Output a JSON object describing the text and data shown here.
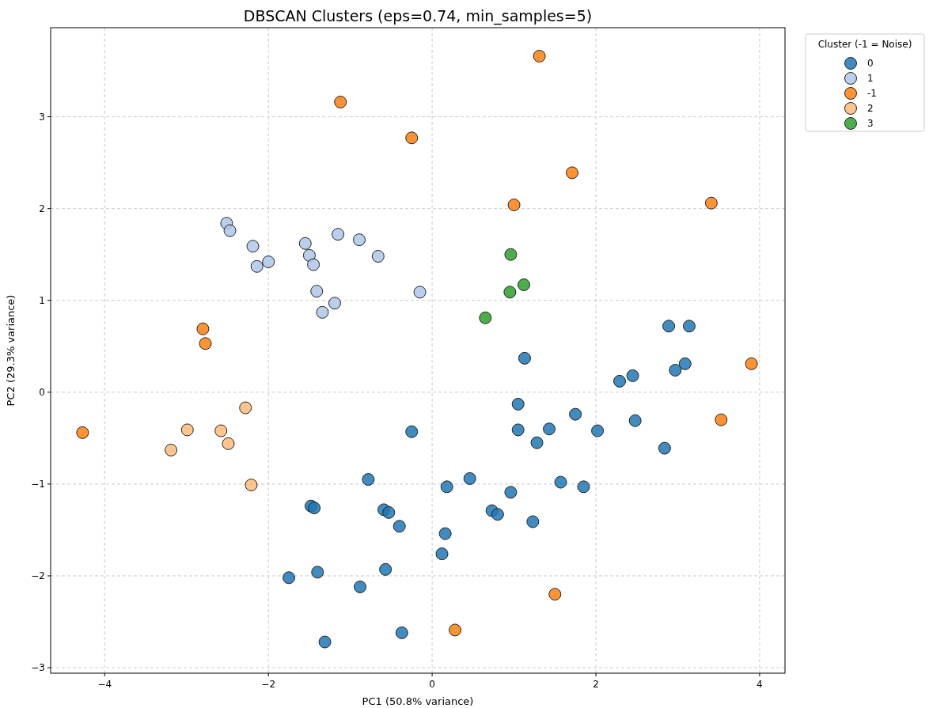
{
  "chart_data": {
    "type": "scatter",
    "title": "DBSCAN Clusters (eps=0.74, min_samples=5)",
    "xlabel": "PC1 (50.8% variance)",
    "ylabel": "PC2 (29.3% variance)",
    "legend_title": "Cluster (-1 = Noise)",
    "legend": "top right",
    "grid": true,
    "marker": "circle",
    "xlim": [
      -4.66,
      4.31
    ],
    "ylim": [
      -3.06,
      3.97
    ],
    "xticks": [
      {
        "value": -4,
        "label": "−4"
      },
      {
        "value": -2,
        "label": "−2"
      },
      0,
      2,
      4
    ],
    "yticks": [
      {
        "value": -3,
        "label": "−3"
      },
      {
        "value": -2,
        "label": "−2"
      },
      {
        "value": -1,
        "label": "−1"
      },
      0,
      1,
      2,
      3
    ],
    "series": [
      {
        "name": "0",
        "color": "#1f77b4",
        "x": [
          1.13,
          2.89,
          3.14,
          3.09,
          2.97,
          2.45,
          2.29,
          1.05,
          1.75,
          2.48,
          2.02,
          1.43,
          1.05,
          1.28,
          2.84,
          -0.25,
          0.18,
          0.46,
          -0.78,
          0.96,
          1.57,
          1.85,
          0.73,
          0.8,
          1.23,
          -1.48,
          -1.44,
          -0.59,
          -0.53,
          -0.4,
          0.16,
          0.12,
          -0.57,
          -1.4,
          -1.75,
          -0.88,
          -0.37,
          -1.31
        ],
        "values": [
          0.37,
          0.72,
          0.72,
          0.31,
          0.24,
          0.18,
          0.12,
          -0.13,
          -0.24,
          -0.31,
          -0.42,
          -0.4,
          -0.41,
          -0.55,
          -0.61,
          -0.43,
          -1.03,
          -0.94,
          -0.95,
          -1.09,
          -0.98,
          -1.03,
          -1.29,
          -1.33,
          -1.41,
          -1.24,
          -1.26,
          -1.28,
          -1.31,
          -1.46,
          -1.54,
          -1.76,
          -1.93,
          -1.96,
          -2.02,
          -2.12,
          -2.62,
          -2.72
        ]
      },
      {
        "name": "1",
        "color": "#aec7e8",
        "x": [
          -2.51,
          -2.47,
          -2.19,
          -2.14,
          -2.0,
          -1.55,
          -1.5,
          -1.45,
          -1.15,
          -0.89,
          -0.66,
          -1.41,
          -1.19,
          -1.34,
          -0.15
        ],
        "values": [
          1.84,
          1.76,
          1.59,
          1.37,
          1.42,
          1.62,
          1.49,
          1.39,
          1.72,
          1.66,
          1.48,
          1.1,
          0.97,
          0.87,
          1.09
        ]
      },
      {
        "name": "-1",
        "color": "#ff7f0e",
        "x": [
          1.31,
          -1.12,
          -0.25,
          1.71,
          1.0,
          3.41,
          -2.8,
          -2.77,
          -4.27,
          3.9,
          3.53,
          1.5,
          0.28
        ],
        "values": [
          3.66,
          3.16,
          2.77,
          2.39,
          2.04,
          2.06,
          0.69,
          0.53,
          -0.44,
          0.31,
          -0.3,
          -2.2,
          -2.59
        ]
      },
      {
        "name": "2",
        "color": "#ffbb78",
        "x": [
          -2.28,
          -2.99,
          -2.58,
          -2.49,
          -3.19,
          -2.21
        ],
        "values": [
          -0.17,
          -0.41,
          -0.42,
          -0.56,
          -0.63,
          -1.01
        ]
      },
      {
        "name": "3",
        "color": "#2ca02c",
        "x": [
          0.96,
          1.12,
          0.95,
          0.65
        ],
        "values": [
          1.5,
          1.17,
          1.09,
          0.81
        ]
      }
    ]
  }
}
